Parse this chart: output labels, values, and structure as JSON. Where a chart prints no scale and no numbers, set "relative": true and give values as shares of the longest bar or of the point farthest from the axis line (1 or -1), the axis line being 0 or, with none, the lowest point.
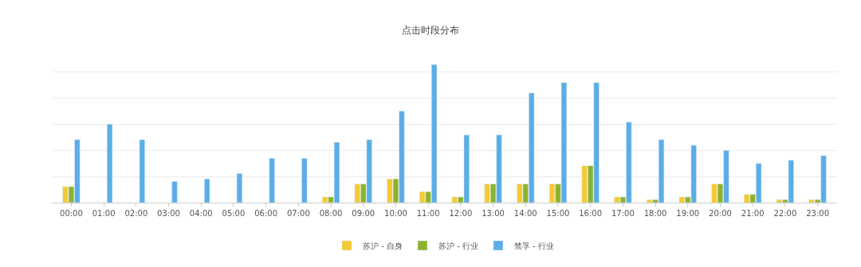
{
  "chart_data": {
    "type": "bar",
    "title": "点击时段分布",
    "relative": true,
    "grid": "y",
    "legend": "bottom",
    "categories": [
      "00:00",
      "01:00",
      "02:00",
      "03:00",
      "04:00",
      "05:00",
      "06:00",
      "07:00",
      "08:00",
      "09:00",
      "10:00",
      "11:00",
      "12:00",
      "13:00",
      "14:00",
      "15:00",
      "16:00",
      "17:00",
      "18:00",
      "19:00",
      "20:00",
      "21:00",
      "22:00",
      "23:00"
    ],
    "series": [
      {
        "name": "苏沪 - 自身",
        "color": "#f5c932",
        "values": [
          0.116,
          null,
          null,
          null,
          null,
          null,
          null,
          null,
          0.041,
          0.135,
          0.172,
          0.079,
          0.041,
          0.135,
          0.135,
          0.135,
          0.267,
          0.041,
          0.022,
          0.041,
          0.135,
          0.06,
          0.022,
          0.022
        ]
      },
      {
        "name": "苏沪 - 行业",
        "color": "#8db32d",
        "values": [
          0.116,
          null,
          null,
          null,
          null,
          null,
          null,
          null,
          0.041,
          0.135,
          0.172,
          0.079,
          0.041,
          0.135,
          0.135,
          0.135,
          0.267,
          0.041,
          0.022,
          0.041,
          0.135,
          0.06,
          0.022,
          0.022
        ]
      },
      {
        "name": "禁孚 - 行业",
        "color": "#5aaee8",
        "values": [
          0.456,
          0.568,
          0.456,
          0.153,
          0.172,
          0.211,
          0.321,
          0.321,
          0.437,
          0.456,
          0.662,
          1,
          0.49,
          0.49,
          0.794,
          0.869,
          0.869,
          0.583,
          0.456,
          0.415,
          0.378,
          0.284,
          0.307,
          0.34
        ]
      }
    ]
  }
}
